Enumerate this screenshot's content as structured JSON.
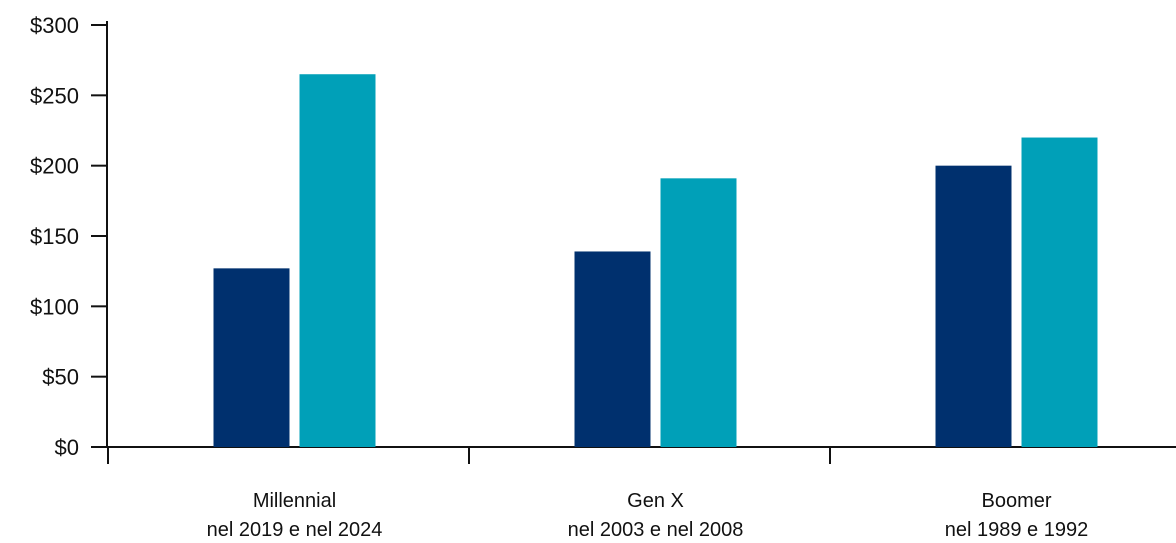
{
  "chart_data": {
    "type": "bar",
    "categories": [
      [
        "Millennial",
        "nel 2019 e nel 2024"
      ],
      [
        "Gen X",
        "nel 2003 e nel 2008"
      ],
      [
        "Boomer",
        "nel 1989 e 1992"
      ]
    ],
    "series": [
      {
        "color": "#00306e",
        "values": [
          127,
          139,
          200
        ]
      },
      {
        "color": "#00a0b8",
        "values": [
          265,
          191,
          220
        ]
      }
    ],
    "ylim": [
      0,
      300
    ],
    "yticks": [
      0,
      50,
      100,
      150,
      200,
      250,
      300
    ],
    "ytick_labels": [
      "$0",
      "$50",
      "$100",
      "$150",
      "$200",
      "$250",
      "$300"
    ],
    "title": "",
    "xlabel": "",
    "ylabel": "",
    "grid": false,
    "legend": "none"
  }
}
